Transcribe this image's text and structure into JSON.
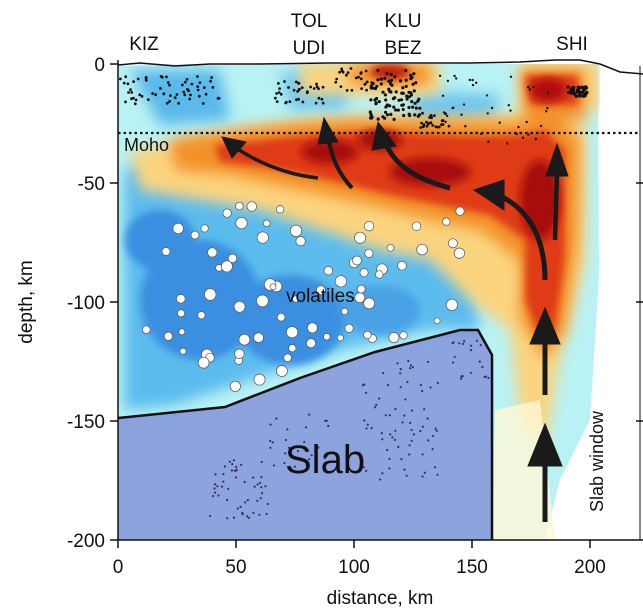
{
  "stations": [
    "KIZ",
    "TOL",
    "UDI",
    "KLU",
    "BEZ",
    "SHI"
  ],
  "labels": {
    "moho": "Moho",
    "volatiles": "volatiles",
    "slab": "Slab",
    "slab_window": "Slab window"
  },
  "axes": {
    "xlabel": "distance, km",
    "ylabel": "depth, km",
    "xticks": [
      "0",
      "50",
      "100",
      "150",
      "200"
    ],
    "yticks": [
      "0",
      "-50",
      "-100",
      "-150",
      "-200"
    ],
    "xlim": [
      0,
      220
    ],
    "ylim": [
      -200,
      0
    ],
    "moho_depth_km": -29
  },
  "colors": {
    "hot_dark": "#b01010",
    "hot": "#e03a10",
    "warm": "#f49a2a",
    "warm_light": "#fbd37e",
    "cold_light": "#aaf1f4",
    "cold": "#4bb6ea",
    "cold_dark": "#2d79d8",
    "slab_fill": "#7a84d6"
  }
}
